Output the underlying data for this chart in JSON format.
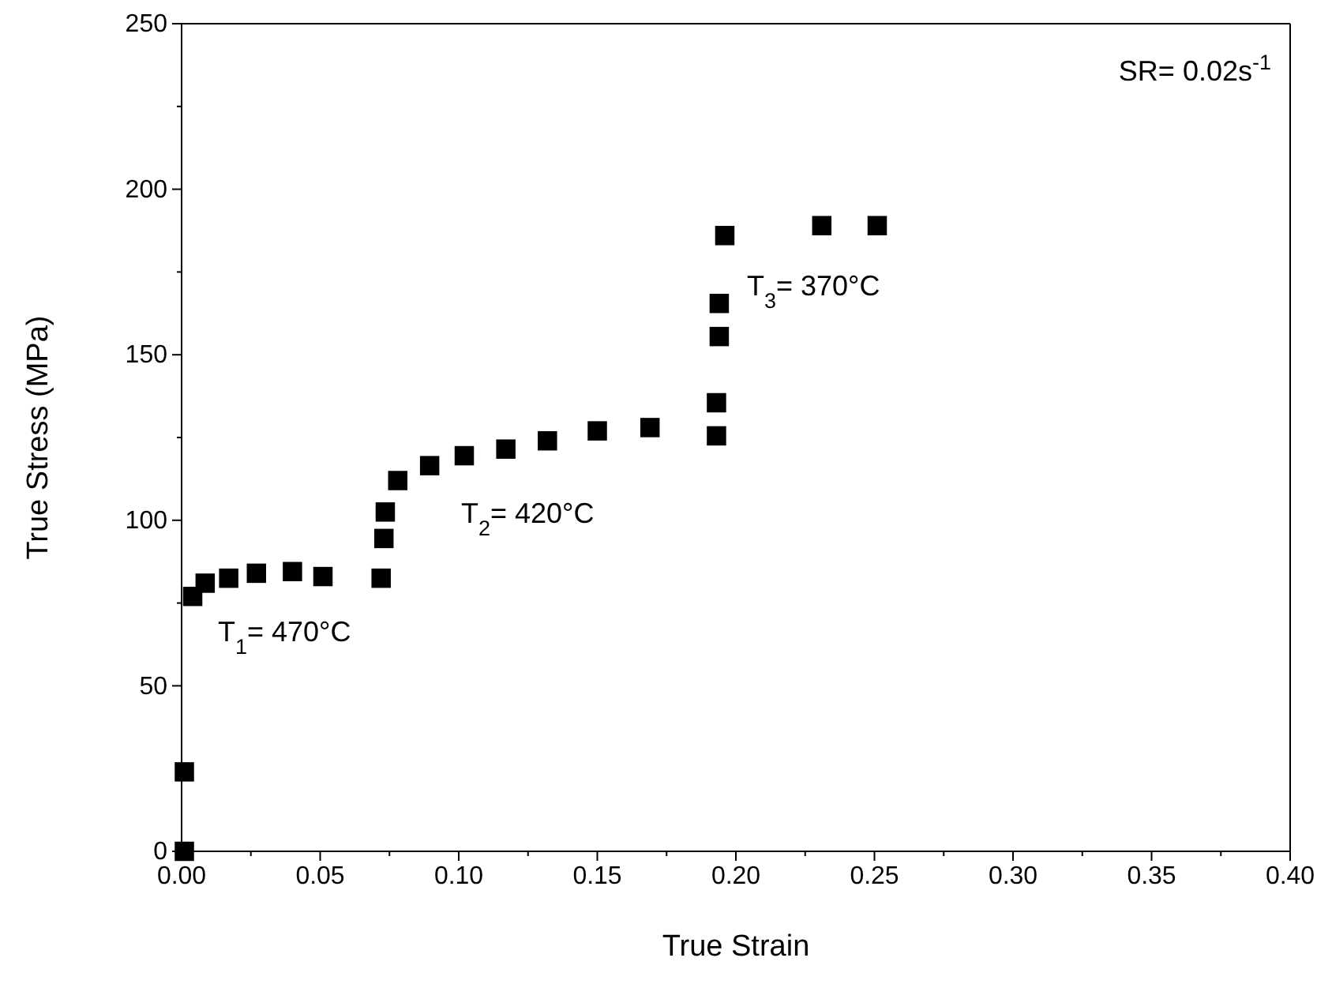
{
  "chart_data": {
    "type": "scatter",
    "xlabel": "True Strain",
    "ylabel": "True Stress (MPa)",
    "marker": "square",
    "grid": false,
    "xlim": [
      0,
      0.4
    ],
    "ylim": [
      0,
      250
    ],
    "xticks": [
      {
        "value": 0,
        "label": "0.00"
      },
      {
        "value": 0.025,
        "label": null
      },
      {
        "value": 0.05,
        "label": "0.05"
      },
      {
        "value": 0.075,
        "label": null
      },
      {
        "value": 0.1,
        "label": "0.10"
      },
      {
        "value": 0.125,
        "label": null
      },
      {
        "value": 0.15,
        "label": "0.15"
      },
      {
        "value": 0.175,
        "label": null
      },
      {
        "value": 0.2,
        "label": "0.20"
      },
      {
        "value": 0.225,
        "label": null
      },
      {
        "value": 0.25,
        "label": "0.25"
      },
      {
        "value": 0.275,
        "label": null
      },
      {
        "value": 0.3,
        "label": "0.30"
      },
      {
        "value": 0.325,
        "label": null
      },
      {
        "value": 0.35,
        "label": "0.35"
      },
      {
        "value": 0.375,
        "label": null
      },
      {
        "value": 0.4,
        "label": "0.40"
      }
    ],
    "yticks": [
      0,
      {
        "value": 25,
        "label": null
      },
      50,
      {
        "value": 75,
        "label": null
      },
      100,
      {
        "value": 125,
        "label": null
      },
      150,
      {
        "value": 175,
        "label": null
      },
      200,
      {
        "value": 225,
        "label": null
      },
      250
    ],
    "series": [
      {
        "color": "#000000",
        "x": [
          0.001,
          0.001,
          0.004,
          0.0085,
          0.017,
          0.027,
          0.04,
          0.051,
          0.072,
          0.073,
          0.0735,
          0.078,
          0.0895,
          0.102,
          0.117,
          0.132,
          0.15,
          0.169,
          0.193,
          0.193,
          0.194,
          0.194,
          0.196,
          0.231,
          0.251
        ],
        "values": [
          0,
          24,
          77,
          81,
          82.5,
          84,
          84.5,
          83,
          82.5,
          94.5,
          102.5,
          112,
          116.5,
          119.5,
          121.5,
          124,
          127,
          128,
          125.5,
          135.5,
          155.5,
          165.5,
          186,
          189,
          189
        ]
      }
    ],
    "annotations": [
      "T$_{1}$= 470°C",
      "T$_{2}$= 420°C",
      "T$_{3}$= 370°C",
      "SR= 0.02s$^{-1}$"
    ]
  }
}
